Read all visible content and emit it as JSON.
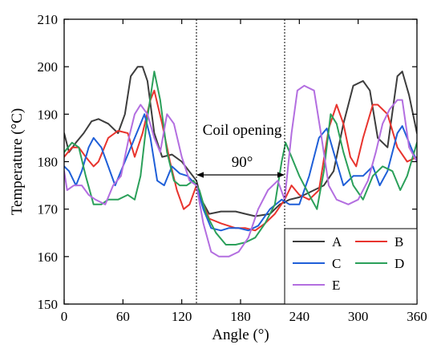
{
  "chart_data": {
    "type": "line",
    "xlabel": "Angle (°)",
    "ylabel": "Temperature (°C)",
    "xlim": [
      0,
      360
    ],
    "ylim": [
      150,
      210
    ],
    "xticks": [
      0,
      60,
      120,
      180,
      240,
      300,
      360
    ],
    "yticks": [
      150,
      160,
      170,
      180,
      190,
      200,
      210
    ],
    "grid": false,
    "legend_position": "bottom-right",
    "annotations": [
      {
        "text": "Coil opening"
      },
      {
        "text": "90°",
        "type": "double-arrow",
        "from_x": 135,
        "to_x": 225
      }
    ],
    "vlines": [
      135,
      225
    ],
    "series": [
      {
        "name": "A",
        "color": "#3d3d3d",
        "points": [
          [
            0,
            186
          ],
          [
            5,
            182
          ],
          [
            12,
            184
          ],
          [
            20,
            186
          ],
          [
            28,
            188.5
          ],
          [
            35,
            189
          ],
          [
            45,
            188
          ],
          [
            55,
            186
          ],
          [
            62,
            190
          ],
          [
            68,
            198
          ],
          [
            75,
            200
          ],
          [
            80,
            200
          ],
          [
            85,
            197
          ],
          [
            92,
            186
          ],
          [
            100,
            181
          ],
          [
            110,
            181.5
          ],
          [
            120,
            180
          ],
          [
            135,
            176
          ],
          [
            140,
            172
          ],
          [
            148,
            169
          ],
          [
            160,
            169.5
          ],
          [
            175,
            169.5
          ],
          [
            185,
            169
          ],
          [
            195,
            168.5
          ],
          [
            210,
            169
          ],
          [
            220,
            171
          ],
          [
            230,
            172
          ],
          [
            240,
            172.5
          ],
          [
            255,
            174
          ],
          [
            265,
            175
          ],
          [
            275,
            178
          ],
          [
            285,
            188
          ],
          [
            295,
            196
          ],
          [
            305,
            197
          ],
          [
            312,
            195
          ],
          [
            320,
            185
          ],
          [
            330,
            183
          ],
          [
            340,
            198
          ],
          [
            345,
            199
          ],
          [
            352,
            194
          ],
          [
            360,
            186
          ]
        ]
      },
      {
        "name": "B",
        "color": "#e8342e",
        "points": [
          [
            0,
            181
          ],
          [
            8,
            183
          ],
          [
            15,
            183
          ],
          [
            22,
            181
          ],
          [
            30,
            179
          ],
          [
            35,
            180
          ],
          [
            45,
            185
          ],
          [
            55,
            186.5
          ],
          [
            65,
            186
          ],
          [
            72,
            181
          ],
          [
            80,
            186
          ],
          [
            88,
            193
          ],
          [
            92,
            195
          ],
          [
            100,
            188
          ],
          [
            108,
            180
          ],
          [
            115,
            174
          ],
          [
            122,
            170
          ],
          [
            128,
            171
          ],
          [
            135,
            175
          ],
          [
            140,
            172
          ],
          [
            148,
            168
          ],
          [
            160,
            167
          ],
          [
            175,
            166
          ],
          [
            185,
            166
          ],
          [
            195,
            165.5
          ],
          [
            205,
            167
          ],
          [
            215,
            169
          ],
          [
            225,
            172
          ],
          [
            232,
            175
          ],
          [
            240,
            173
          ],
          [
            250,
            172
          ],
          [
            260,
            174
          ],
          [
            270,
            187
          ],
          [
            278,
            192
          ],
          [
            285,
            188
          ],
          [
            292,
            181
          ],
          [
            298,
            179
          ],
          [
            305,
            185
          ],
          [
            315,
            192
          ],
          [
            320,
            192
          ],
          [
            330,
            190
          ],
          [
            340,
            183
          ],
          [
            350,
            180
          ],
          [
            360,
            181
          ]
        ]
      },
      {
        "name": "C",
        "color": "#1f5fd8",
        "points": [
          [
            0,
            179
          ],
          [
            5,
            178
          ],
          [
            12,
            175
          ],
          [
            18,
            178
          ],
          [
            25,
            183
          ],
          [
            30,
            185
          ],
          [
            38,
            183
          ],
          [
            45,
            179
          ],
          [
            52,
            175
          ],
          [
            60,
            179
          ],
          [
            70,
            184
          ],
          [
            78,
            188
          ],
          [
            82,
            190
          ],
          [
            88,
            185
          ],
          [
            95,
            176
          ],
          [
            102,
            175
          ],
          [
            110,
            179
          ],
          [
            118,
            177.5
          ],
          [
            126,
            177
          ],
          [
            135,
            175
          ],
          [
            142,
            170
          ],
          [
            150,
            166
          ],
          [
            160,
            165.5
          ],
          [
            168,
            166
          ],
          [
            178,
            166
          ],
          [
            188,
            165.5
          ],
          [
            198,
            166.5
          ],
          [
            210,
            170
          ],
          [
            222,
            172
          ],
          [
            230,
            171
          ],
          [
            240,
            171
          ],
          [
            250,
            177
          ],
          [
            260,
            185
          ],
          [
            268,
            187
          ],
          [
            275,
            182
          ],
          [
            285,
            175
          ],
          [
            295,
            177
          ],
          [
            305,
            177
          ],
          [
            315,
            179
          ],
          [
            322,
            175
          ],
          [
            330,
            178
          ],
          [
            340,
            186
          ],
          [
            345,
            187.5
          ],
          [
            352,
            184
          ],
          [
            360,
            180
          ]
        ]
      },
      {
        "name": "D",
        "color": "#2ba05a",
        "points": [
          [
            0,
            182
          ],
          [
            8,
            184
          ],
          [
            15,
            183
          ],
          [
            22,
            177
          ],
          [
            30,
            171
          ],
          [
            38,
            171
          ],
          [
            45,
            172
          ],
          [
            55,
            172
          ],
          [
            65,
            173
          ],
          [
            72,
            172
          ],
          [
            78,
            177
          ],
          [
            84,
            188
          ],
          [
            92,
            199
          ],
          [
            98,
            193
          ],
          [
            105,
            182
          ],
          [
            112,
            176
          ],
          [
            118,
            175
          ],
          [
            125,
            175
          ],
          [
            132,
            176
          ],
          [
            138,
            174
          ],
          [
            145,
            169
          ],
          [
            155,
            165
          ],
          [
            165,
            162.5
          ],
          [
            175,
            162.5
          ],
          [
            185,
            163
          ],
          [
            195,
            164
          ],
          [
            205,
            167
          ],
          [
            215,
            171
          ],
          [
            222,
            180
          ],
          [
            226,
            184
          ],
          [
            232,
            181
          ],
          [
            240,
            177
          ],
          [
            250,
            173
          ],
          [
            258,
            170
          ],
          [
            265,
            178
          ],
          [
            272,
            190
          ],
          [
            278,
            188
          ],
          [
            285,
            182
          ],
          [
            295,
            175
          ],
          [
            305,
            172
          ],
          [
            315,
            177
          ],
          [
            325,
            179
          ],
          [
            335,
            178
          ],
          [
            343,
            174
          ],
          [
            350,
            177
          ],
          [
            360,
            184
          ]
        ]
      },
      {
        "name": "E",
        "color": "#b36ee0",
        "points": [
          [
            0,
            178
          ],
          [
            3,
            174
          ],
          [
            10,
            175
          ],
          [
            18,
            175
          ],
          [
            25,
            173
          ],
          [
            32,
            172
          ],
          [
            42,
            171
          ],
          [
            50,
            175
          ],
          [
            58,
            177
          ],
          [
            66,
            185
          ],
          [
            72,
            190
          ],
          [
            78,
            192
          ],
          [
            85,
            190
          ],
          [
            92,
            185
          ],
          [
            98,
            182
          ],
          [
            105,
            190
          ],
          [
            112,
            188
          ],
          [
            120,
            181
          ],
          [
            128,
            176
          ],
          [
            135,
            175
          ],
          [
            142,
            167
          ],
          [
            150,
            161
          ],
          [
            158,
            160
          ],
          [
            168,
            160
          ],
          [
            178,
            161
          ],
          [
            188,
            164
          ],
          [
            198,
            170
          ],
          [
            208,
            174
          ],
          [
            218,
            176
          ],
          [
            225,
            172
          ],
          [
            232,
            186
          ],
          [
            238,
            195
          ],
          [
            245,
            196
          ],
          [
            255,
            195
          ],
          [
            262,
            186
          ],
          [
            270,
            175
          ],
          [
            278,
            172
          ],
          [
            290,
            171
          ],
          [
            300,
            172
          ],
          [
            310,
            176
          ],
          [
            318,
            182
          ],
          [
            325,
            188
          ],
          [
            332,
            191
          ],
          [
            340,
            193
          ],
          [
            345,
            193
          ],
          [
            352,
            183
          ],
          [
            360,
            180
          ]
        ]
      }
    ]
  }
}
